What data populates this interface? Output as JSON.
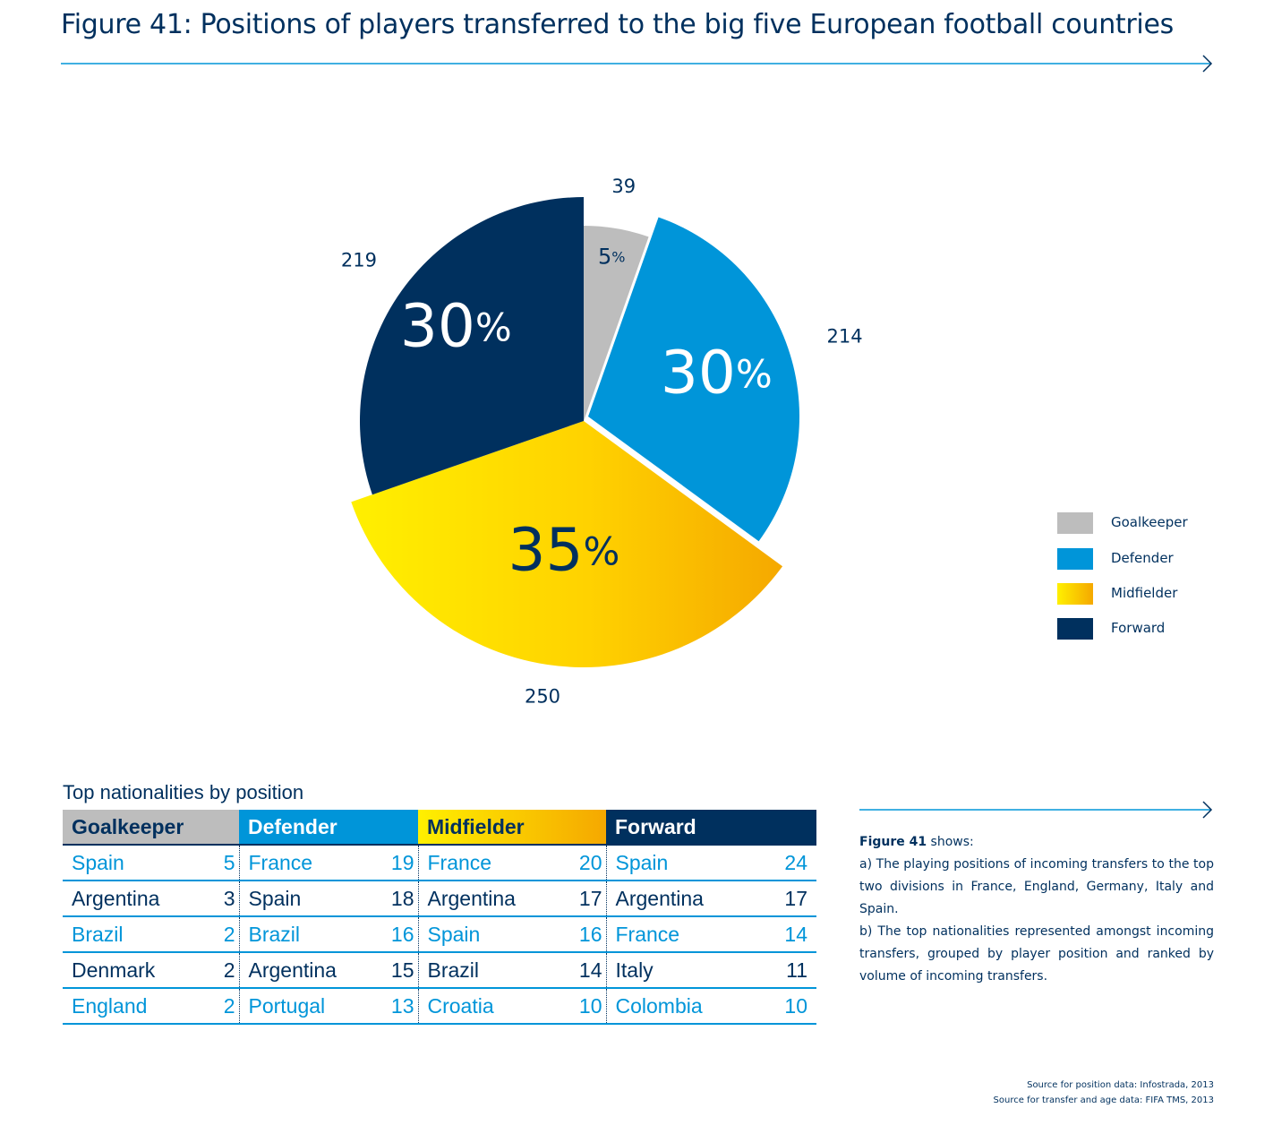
{
  "title": "Figure 41: Positions of players transferred to the big five European football countries",
  "colors": {
    "dark_blue": "#00305e",
    "blue": "#0095d9",
    "grey": "#bdbdbd",
    "yellow_start": "#fff000",
    "yellow_end": "#f5a800"
  },
  "chart_data": {
    "type": "pie",
    "slices": [
      {
        "label": "Goalkeeper",
        "value": 39,
        "percent": "5",
        "color": "#bdbdbd"
      },
      {
        "label": "Defender",
        "value": 214,
        "percent": "30",
        "color": "#0095d9"
      },
      {
        "label": "Midfielder",
        "value": 250,
        "percent": "35",
        "color": "gradient-yellow"
      },
      {
        "label": "Forward",
        "value": 219,
        "percent": "30",
        "color": "#00305e"
      }
    ],
    "percent_sign": "%",
    "legend": [
      "Goalkeeper",
      "Defender",
      "Midfielder",
      "Forward"
    ],
    "legend_position": "right"
  },
  "table": {
    "title": "Top nationalities by position",
    "columns": [
      {
        "header": "Goalkeeper",
        "rows": [
          [
            "Spain",
            "5"
          ],
          [
            "Argentina",
            "3"
          ],
          [
            "Brazil",
            "2"
          ],
          [
            "Denmark",
            "2"
          ],
          [
            "England",
            "2"
          ]
        ]
      },
      {
        "header": "Defender",
        "rows": [
          [
            "France",
            "19"
          ],
          [
            "Spain",
            "18"
          ],
          [
            "Brazil",
            "16"
          ],
          [
            "Argentina",
            "15"
          ],
          [
            "Portugal",
            "13"
          ]
        ]
      },
      {
        "header": "Midfielder",
        "rows": [
          [
            "France",
            "20"
          ],
          [
            "Argentina",
            "17"
          ],
          [
            "Spain",
            "16"
          ],
          [
            "Brazil",
            "14"
          ],
          [
            "Croatia",
            "10"
          ]
        ]
      },
      {
        "header": "Forward",
        "rows": [
          [
            "Spain",
            "24"
          ],
          [
            "Argentina",
            "17"
          ],
          [
            "France",
            "14"
          ],
          [
            "Italy",
            "11"
          ],
          [
            "Colombia",
            "10"
          ]
        ]
      }
    ]
  },
  "description": {
    "lead_bold": "Figure 41",
    "lead_rest": " shows:",
    "a": "a) The playing positions of incoming transfers to the top two divisions in France, England, Germany, Italy and Spain.",
    "b": "b) The top nationalities represented amongst incoming transfers, grouped by player position and ranked by volume of incoming transfers."
  },
  "sources": {
    "line1": "Source for position data: Infostrada, 2013",
    "line2": "Source for transfer and age data: FIFA TMS, 2013"
  }
}
